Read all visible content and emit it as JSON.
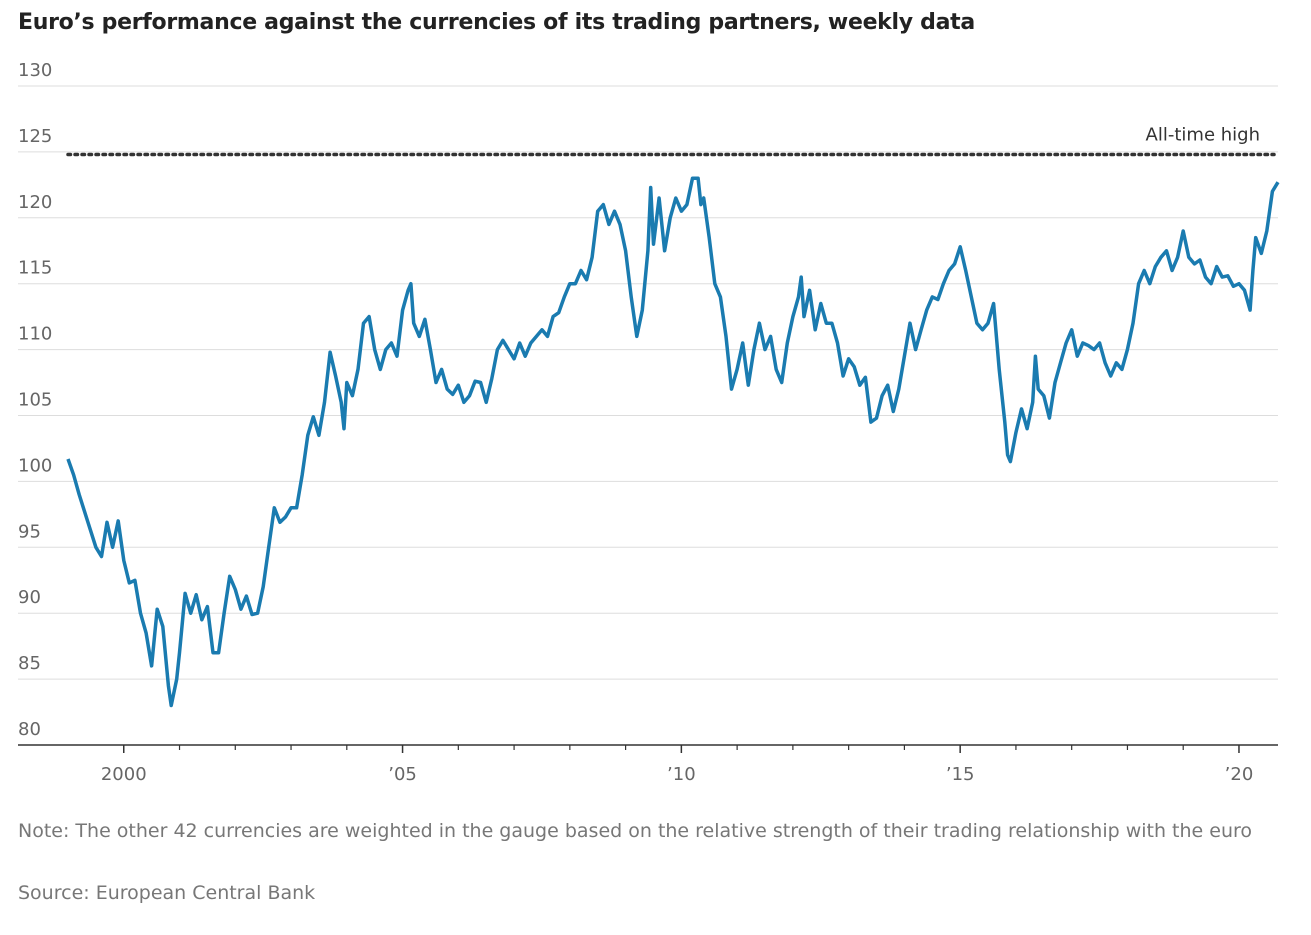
{
  "chart_data": {
    "type": "line",
    "title": "Euro’s performance against the currencies of its trading partners, weekly data",
    "note": "Note: The other 42 currencies are weighted in the gauge based on the relative strength of their trading relationship with the euro",
    "source": "Source: European Central Bank",
    "x": [
      1999.0,
      1999.1,
      1999.2,
      1999.35,
      1999.5,
      1999.6,
      1999.7,
      1999.8,
      1999.9,
      2000.0,
      2000.1,
      2000.2,
      2000.3,
      2000.4,
      2000.5,
      2000.6,
      2000.7,
      2000.8,
      2000.85,
      2000.95,
      2001.0,
      2001.1,
      2001.2,
      2001.3,
      2001.4,
      2001.5,
      2001.6,
      2001.7,
      2001.8,
      2001.9,
      2002.0,
      2002.1,
      2002.2,
      2002.3,
      2002.4,
      2002.5,
      2002.6,
      2002.7,
      2002.8,
      2002.9,
      2003.0,
      2003.1,
      2003.2,
      2003.3,
      2003.4,
      2003.5,
      2003.6,
      2003.7,
      2003.8,
      2003.9,
      2003.95,
      2004.0,
      2004.1,
      2004.2,
      2004.3,
      2004.4,
      2004.5,
      2004.6,
      2004.7,
      2004.8,
      2004.9,
      2005.0,
      2005.1,
      2005.15,
      2005.2,
      2005.3,
      2005.4,
      2005.5,
      2005.6,
      2005.7,
      2005.8,
      2005.9,
      2006.0,
      2006.1,
      2006.2,
      2006.3,
      2006.4,
      2006.5,
      2006.6,
      2006.7,
      2006.8,
      2006.9,
      2007.0,
      2007.1,
      2007.2,
      2007.3,
      2007.4,
      2007.5,
      2007.6,
      2007.7,
      2007.8,
      2007.9,
      2008.0,
      2008.1,
      2008.2,
      2008.3,
      2008.4,
      2008.5,
      2008.6,
      2008.7,
      2008.8,
      2008.9,
      2009.0,
      2009.1,
      2009.2,
      2009.3,
      2009.4,
      2009.45,
      2009.5,
      2009.6,
      2009.7,
      2009.8,
      2009.9,
      2010.0,
      2010.1,
      2010.2,
      2010.3,
      2010.35,
      2010.4,
      2010.5,
      2010.6,
      2010.7,
      2010.8,
      2010.9,
      2011.0,
      2011.1,
      2011.2,
      2011.3,
      2011.4,
      2011.5,
      2011.6,
      2011.7,
      2011.8,
      2011.9,
      2012.0,
      2012.1,
      2012.15,
      2012.2,
      2012.3,
      2012.4,
      2012.5,
      2012.6,
      2012.7,
      2012.8,
      2012.9,
      2013.0,
      2013.1,
      2013.2,
      2013.3,
      2013.4,
      2013.5,
      2013.6,
      2013.7,
      2013.8,
      2013.9,
      2014.0,
      2014.1,
      2014.2,
      2014.3,
      2014.4,
      2014.5,
      2014.6,
      2014.7,
      2014.8,
      2014.9,
      2015.0,
      2015.1,
      2015.2,
      2015.3,
      2015.4,
      2015.5,
      2015.6,
      2015.7,
      2015.8,
      2015.85,
      2015.9,
      2016.0,
      2016.1,
      2016.2,
      2016.3,
      2016.35,
      2016.4,
      2016.5,
      2016.6,
      2016.7,
      2016.8,
      2016.9,
      2017.0,
      2017.1,
      2017.2,
      2017.3,
      2017.4,
      2017.5,
      2017.6,
      2017.7,
      2017.8,
      2017.9,
      2018.0,
      2018.1,
      2018.2,
      2018.3,
      2018.4,
      2018.5,
      2018.6,
      2018.7,
      2018.8,
      2018.9,
      2019.0,
      2019.1,
      2019.2,
      2019.3,
      2019.4,
      2019.5,
      2019.6,
      2019.7,
      2019.8,
      2019.9,
      2020.0,
      2020.1,
      2020.2,
      2020.25,
      2020.3,
      2020.4,
      2020.5,
      2020.6,
      2020.7
    ],
    "series": [
      {
        "color": "#1a7bb0",
        "values": [
          101.7,
          100.5,
          99,
          97,
          95,
          94.3,
          96.9,
          95,
          97,
          94,
          92.3,
          92.5,
          90,
          88.5,
          86,
          90.3,
          89,
          84.5,
          83,
          85,
          87,
          91.5,
          90,
          91.4,
          89.5,
          90.5,
          87,
          87,
          90,
          92.8,
          91.8,
          90.3,
          91.3,
          89.9,
          90,
          92,
          95,
          98,
          96.9,
          97.3,
          98,
          98,
          100.5,
          103.5,
          104.9,
          103.5,
          106,
          109.8,
          108,
          106,
          104,
          107.5,
          106.5,
          108.5,
          112,
          112.5,
          110,
          108.5,
          110,
          110.5,
          109.5,
          113,
          114.5,
          115,
          112,
          111,
          112.3,
          110,
          107.5,
          108.5,
          107,
          106.6,
          107.3,
          106,
          106.5,
          107.6,
          107.5,
          106,
          107.8,
          110,
          110.7,
          110,
          109.3,
          110.5,
          109.5,
          110.5,
          111,
          111.5,
          111,
          112.5,
          112.8,
          114,
          115,
          115,
          116,
          115.3,
          117,
          120.5,
          121,
          119.5,
          120.5,
          119.5,
          117.5,
          114,
          111,
          113,
          117.5,
          122.3,
          118,
          121.5,
          117.5,
          120,
          121.5,
          120.5,
          121,
          123,
          123,
          121,
          121.5,
          118.5,
          115,
          114,
          111,
          107,
          108.5,
          110.5,
          107.3,
          110,
          112,
          110,
          111,
          108.5,
          107.5,
          110.5,
          112.5,
          114,
          115.5,
          112.5,
          114.5,
          111.5,
          113.5,
          112,
          112,
          110.5,
          108,
          109.3,
          108.7,
          107.3,
          107.9,
          104.5,
          104.8,
          106.5,
          107.3,
          105.3,
          107,
          109.5,
          112,
          110,
          111.5,
          113,
          114,
          113.8,
          115,
          116,
          116.5,
          117.8,
          116,
          114,
          112,
          111.5,
          112,
          113.5,
          108.5,
          104.5,
          102,
          101.5,
          103.7,
          105.5,
          104,
          106,
          109.5,
          107,
          106.5,
          104.8,
          107.5,
          109,
          110.5,
          111.5,
          109.5,
          110.5,
          110.3,
          110,
          110.5,
          109,
          108,
          109,
          108.5,
          110,
          112,
          115,
          116,
          115,
          116.3,
          117,
          117.5,
          116,
          117,
          119,
          117,
          116.5,
          116.8,
          115.5,
          115,
          116.3,
          115.5,
          115.6,
          114.8,
          115,
          114.5,
          113,
          116,
          118.5,
          117.3,
          119,
          122,
          122.7
        ]
      }
    ],
    "xlim": [
      1999.0,
      2020.7
    ],
    "ylim": [
      80,
      130
    ],
    "yticks": [
      80,
      85,
      90,
      95,
      100,
      105,
      110,
      115,
      120,
      125,
      130
    ],
    "xticks": [
      2000,
      {
        "value": 2005,
        "label": "’05"
      },
      {
        "value": 2010,
        "label": "’10"
      },
      {
        "value": 2015,
        "label": "’15"
      },
      {
        "value": 2020,
        "label": "’20"
      }
    ],
    "xminorticks": [
      2001,
      2002,
      2003,
      2004,
      2006,
      2007,
      2008,
      2009,
      2011,
      2012,
      2013,
      2014,
      2016,
      2017,
      2018,
      2019
    ],
    "grid": true,
    "annotations": [
      {
        "text": "All-time high",
        "value": 124.8
      }
    ]
  }
}
